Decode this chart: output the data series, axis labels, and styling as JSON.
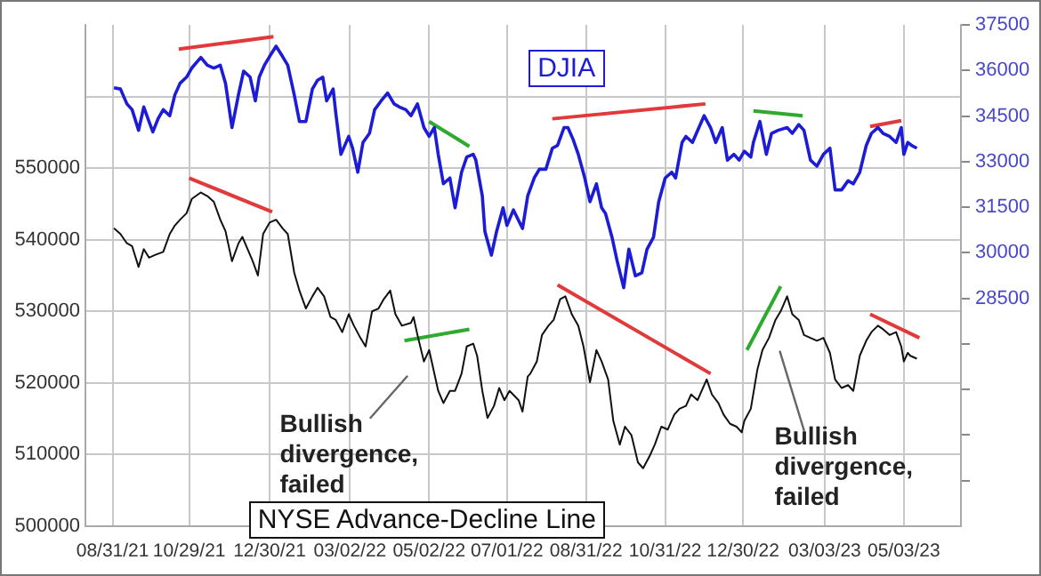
{
  "chart_data": {
    "type": "line",
    "series": [
      {
        "name": "DJIA",
        "color": "#1c1cd6",
        "axis": "y2",
        "x": [
          "2021-09-01",
          "2021-09-06",
          "2021-09-11",
          "2021-09-15",
          "2021-09-20",
          "2021-09-24",
          "2021-09-28",
          "2021-10-01",
          "2021-10-05",
          "2021-10-09",
          "2021-10-14",
          "2021-10-18",
          "2021-10-22",
          "2021-10-27",
          "2021-10-31",
          "2021-11-07",
          "2021-11-12",
          "2021-11-17",
          "2021-11-22",
          "2021-11-26",
          "2021-12-01",
          "2021-12-06",
          "2021-12-10",
          "2021-12-15",
          "2021-12-19",
          "2021-12-22",
          "2021-12-26",
          "2021-12-30",
          "2022-01-04",
          "2022-01-09",
          "2022-01-13",
          "2022-01-18",
          "2022-01-22",
          "2022-01-27",
          "2022-02-01",
          "2022-02-05",
          "2022-02-09",
          "2022-02-12",
          "2022-02-17",
          "2022-02-19",
          "2022-02-23",
          "2022-03-01",
          "2022-03-04",
          "2022-03-08",
          "2022-03-12",
          "2022-03-17",
          "2022-03-21",
          "2022-03-26",
          "2022-03-31",
          "2022-04-05",
          "2022-04-09",
          "2022-04-14",
          "2022-04-18",
          "2022-04-23",
          "2022-04-28",
          "2022-05-02",
          "2022-05-06",
          "2022-05-09",
          "2022-05-13",
          "2022-05-18",
          "2022-05-22",
          "2022-05-27",
          "2022-05-31",
          "2022-06-05",
          "2022-06-07",
          "2022-06-12",
          "2022-06-14",
          "2022-06-19",
          "2022-06-23",
          "2022-06-28",
          "2022-07-01",
          "2022-07-06",
          "2022-07-13",
          "2022-07-17",
          "2022-07-22",
          "2022-07-26",
          "2022-07-31",
          "2022-08-05",
          "2022-08-09",
          "2022-08-14",
          "2022-08-17",
          "2022-08-21",
          "2022-08-25",
          "2022-08-30",
          "2022-09-03",
          "2022-09-08",
          "2022-09-12",
          "2022-09-15",
          "2022-09-20",
          "2022-09-24",
          "2022-09-29",
          "2022-10-03",
          "2022-10-08",
          "2022-10-13",
          "2022-10-17",
          "2022-10-22",
          "2022-10-26",
          "2022-10-31",
          "2022-11-05",
          "2022-11-08",
          "2022-11-13",
          "2022-11-16",
          "2022-11-21",
          "2022-11-26",
          "2022-11-30",
          "2022-12-05",
          "2022-12-09",
          "2022-12-14",
          "2022-12-18",
          "2022-12-23",
          "2022-12-27",
          "2022-12-31",
          "2023-01-05",
          "2023-01-07",
          "2023-01-12",
          "2023-01-17",
          "2023-01-21",
          "2023-01-26",
          "2023-02-02",
          "2023-02-06",
          "2023-02-11",
          "2023-02-15",
          "2023-02-20",
          "2023-02-25",
          "2023-03-02",
          "2023-03-07",
          "2023-03-11",
          "2023-03-16",
          "2023-03-21",
          "2023-03-25",
          "2023-03-30",
          "2023-04-04",
          "2023-04-08",
          "2023-04-13",
          "2023-04-17",
          "2023-04-22",
          "2023-04-27",
          "2023-05-01",
          "2023-05-03",
          "2023-05-06",
          "2023-05-09",
          "2023-05-13"
        ],
        "values": [
          35430,
          35390,
          34900,
          34710,
          34030,
          34800,
          34320,
          33980,
          34410,
          34710,
          34510,
          35200,
          35580,
          35780,
          36080,
          36430,
          36170,
          36080,
          36170,
          35580,
          34120,
          35200,
          35980,
          35780,
          35000,
          35780,
          36170,
          36460,
          36800,
          36460,
          36170,
          35200,
          34320,
          34320,
          35390,
          35680,
          35780,
          35000,
          35390,
          34610,
          33240,
          33830,
          33440,
          32650,
          33630,
          33930,
          34710,
          35000,
          35260,
          34900,
          34800,
          34710,
          34510,
          34900,
          34120,
          33830,
          34120,
          33240,
          32270,
          32460,
          31480,
          32650,
          33150,
          33240,
          33050,
          31870,
          30700,
          29920,
          30700,
          31480,
          30900,
          31410,
          30800,
          31870,
          32460,
          32750,
          32750,
          33440,
          33530,
          34120,
          34120,
          33730,
          33240,
          32460,
          31680,
          32270,
          31480,
          31290,
          30510,
          29720,
          28850,
          30120,
          29240,
          29340,
          30120,
          30510,
          31680,
          32460,
          32650,
          32460,
          33630,
          33830,
          33630,
          34120,
          34510,
          34120,
          33630,
          34120,
          33050,
          33240,
          33050,
          33340,
          33150,
          33630,
          34320,
          33240,
          33930,
          34030,
          34120,
          33930,
          34220,
          34030,
          33050,
          32850,
          33240,
          33440,
          32070,
          32070,
          32370,
          32270,
          32650,
          33530,
          33930,
          34120,
          33930,
          33830,
          33630,
          34120,
          33240,
          33630,
          33530,
          33440
        ]
      },
      {
        "name": "NYSE Advance-Decline Line",
        "color": "#111111",
        "x": [
          "2021-09-01",
          "2021-09-06",
          "2021-09-11",
          "2021-09-15",
          "2021-09-20",
          "2021-09-24",
          "2021-09-28",
          "2021-10-03",
          "2021-10-09",
          "2021-10-14",
          "2021-10-18",
          "2021-10-22",
          "2021-10-27",
          "2021-10-31",
          "2021-11-07",
          "2021-11-12",
          "2021-11-17",
          "2021-11-22",
          "2021-11-26",
          "2021-12-01",
          "2021-12-06",
          "2021-12-09",
          "2021-12-13",
          "2021-12-17",
          "2021-12-21",
          "2021-12-25",
          "2021-12-30",
          "2022-01-04",
          "2022-01-09",
          "2022-01-13",
          "2022-01-18",
          "2022-01-22",
          "2022-01-27",
          "2022-02-01",
          "2022-02-05",
          "2022-02-10",
          "2022-02-15",
          "2022-02-19",
          "2022-02-24",
          "2022-03-01",
          "2022-03-05",
          "2022-03-10",
          "2022-03-14",
          "2022-03-19",
          "2022-03-24",
          "2022-03-28",
          "2022-04-02",
          "2022-04-06",
          "2022-04-11",
          "2022-04-18",
          "2022-04-20",
          "2022-04-23",
          "2022-04-28",
          "2022-05-02",
          "2022-05-09",
          "2022-05-13",
          "2022-05-18",
          "2022-05-22",
          "2022-05-27",
          "2022-05-31",
          "2022-06-05",
          "2022-06-08",
          "2022-06-12",
          "2022-06-16",
          "2022-06-21",
          "2022-06-25",
          "2022-06-29",
          "2022-07-03",
          "2022-07-10",
          "2022-07-13",
          "2022-07-17",
          "2022-07-19",
          "2022-07-24",
          "2022-07-28",
          "2022-08-02",
          "2022-08-06",
          "2022-08-11",
          "2022-08-15",
          "2022-08-20",
          "2022-08-25",
          "2022-08-29",
          "2022-09-03",
          "2022-09-08",
          "2022-09-12",
          "2022-09-17",
          "2022-09-21",
          "2022-09-26",
          "2022-09-30",
          "2022-10-05",
          "2022-10-10",
          "2022-10-14",
          "2022-10-19",
          "2022-10-23",
          "2022-10-28",
          "2022-11-02",
          "2022-11-07",
          "2022-11-11",
          "2022-11-16",
          "2022-11-20",
          "2022-11-25",
          "2022-11-30",
          "2022-12-02",
          "2022-12-06",
          "2022-12-11",
          "2022-12-15",
          "2022-12-20",
          "2022-12-25",
          "2022-12-29",
          "2022-12-31",
          "2023-01-05",
          "2023-01-10",
          "2023-01-14",
          "2023-01-19",
          "2023-01-24",
          "2023-01-28",
          "2023-02-02",
          "2023-02-06",
          "2023-02-11",
          "2023-02-15",
          "2023-02-20",
          "2023-02-25",
          "2023-03-02",
          "2023-03-07",
          "2023-03-11",
          "2023-03-16",
          "2023-03-21",
          "2023-03-25",
          "2023-03-30",
          "2023-04-04",
          "2023-04-08",
          "2023-04-13",
          "2023-04-17",
          "2023-04-22",
          "2023-04-27",
          "2023-05-01",
          "2023-05-03",
          "2023-05-06",
          "2023-05-08",
          "2023-05-13"
        ],
        "values": [
          541600,
          540800,
          539500,
          539100,
          536200,
          538700,
          537500,
          537900,
          538300,
          540800,
          542000,
          542800,
          543700,
          545700,
          546600,
          546100,
          545300,
          542800,
          541200,
          537000,
          539500,
          540400,
          538700,
          537000,
          535000,
          540800,
          542400,
          542800,
          541600,
          540800,
          535400,
          532900,
          530400,
          532100,
          533300,
          532100,
          529200,
          528800,
          527100,
          529600,
          528000,
          526300,
          525100,
          530000,
          530400,
          531700,
          532900,
          529600,
          528000,
          528400,
          529200,
          526700,
          523000,
          524600,
          518900,
          517200,
          518900,
          518900,
          521300,
          525100,
          525500,
          523800,
          518900,
          515100,
          516800,
          519300,
          517600,
          518900,
          517600,
          516000,
          520900,
          521300,
          523000,
          526700,
          528000,
          528800,
          531700,
          532100,
          529600,
          528000,
          525100,
          520100,
          524600,
          523000,
          520500,
          514700,
          511400,
          513900,
          512700,
          508900,
          508100,
          509800,
          511400,
          513900,
          513500,
          515600,
          516400,
          516800,
          518400,
          517600,
          519700,
          520500,
          518400,
          517200,
          515600,
          514300,
          513900,
          513100,
          514700,
          516400,
          521800,
          524600,
          526300,
          528800,
          530000,
          532100,
          529600,
          528800,
          526700,
          526300,
          525900,
          526300,
          524200,
          520500,
          519300,
          519700,
          518900,
          523800,
          525900,
          527100,
          528000,
          527500,
          526700,
          527100,
          525100,
          523000,
          524200,
          523800,
          523400
        ]
      },
      {
        "color": "#e03a3a",
        "axis": "y2",
        "x": [
          "2021-10-21",
          "2022-01-02"
        ],
        "values": [
          36700,
          37110
        ]
      },
      {
        "color": "#2eaa2e",
        "axis": "y2",
        "x": [
          "2022-05-02",
          "2022-06-02"
        ],
        "values": [
          34320,
          33500
        ]
      },
      {
        "color": "#e03a3a",
        "axis": "y2",
        "x": [
          "2022-08-05",
          "2022-12-01"
        ],
        "values": [
          34410,
          34900
        ]
      },
      {
        "color": "#2eaa2e",
        "axis": "y2",
        "x": [
          "2023-01-07",
          "2023-02-14"
        ],
        "values": [
          34670,
          34510
        ]
      },
      {
        "color": "#e03a3a",
        "axis": "y2",
        "x": [
          "2023-04-07",
          "2023-05-01"
        ],
        "values": [
          34160,
          34350
        ]
      },
      {
        "color": "#e03a3a",
        "x": [
          "2021-10-29",
          "2022-01-01"
        ],
        "values": [
          548600,
          543900
        ]
      },
      {
        "color": "#2eaa2e",
        "x": [
          "2022-04-13",
          "2022-06-02"
        ],
        "values": [
          525900,
          527500
        ]
      },
      {
        "color": "#e03a3a",
        "x": [
          "2022-08-09",
          "2022-12-05"
        ],
        "values": [
          533700,
          521300
        ]
      },
      {
        "color": "#2eaa2e",
        "x": [
          "2023-01-02",
          "2023-01-28"
        ],
        "values": [
          524600,
          533500
        ]
      },
      {
        "color": "#e03a3a",
        "x": [
          "2023-04-07",
          "2023-05-15"
        ],
        "values": [
          529600,
          526300
        ]
      }
    ],
    "xlim": [
      "2021-08-10",
      "2023-06-16"
    ],
    "xticks": [
      {
        "value": "2021-08-31",
        "label": "08/31/21"
      },
      {
        "value": "2021-10-29",
        "label": "10/29/21"
      },
      {
        "value": "2021-12-30",
        "label": "12/30/21"
      },
      {
        "value": "2022-03-02",
        "label": "03/02/22"
      },
      {
        "value": "2022-05-02",
        "label": "05/02/22"
      },
      {
        "value": "2022-07-01",
        "label": "07/01/22"
      },
      {
        "value": "2022-08-31",
        "label": "08/31/22"
      },
      {
        "value": "2022-10-31",
        "label": "10/31/22"
      },
      {
        "value": "2022-12-30",
        "label": "12/30/22"
      },
      {
        "value": "2023-03-03",
        "label": "03/03/23"
      },
      {
        "value": "2023-05-03",
        "label": "05/03/23"
      }
    ],
    "ylim": [
      500000,
      570000
    ],
    "yticks": [
      500000,
      510000,
      520000,
      530000,
      540000,
      550000,
      {
        "value": 560000,
        "label": null
      }
    ],
    "y2lim": [
      21000,
      37500
    ],
    "y2ticks": [
      {
        "value": 22500,
        "label": null
      },
      {
        "value": 24000,
        "label": null
      },
      {
        "value": 25500,
        "label": null
      },
      {
        "value": 27000,
        "label": null
      },
      28500,
      30000,
      31500,
      33000,
      34500,
      36000,
      37500
    ],
    "grid": true,
    "annotations": [
      "Bullish divergence, failed",
      "Bullish divergence, failed"
    ]
  }
}
